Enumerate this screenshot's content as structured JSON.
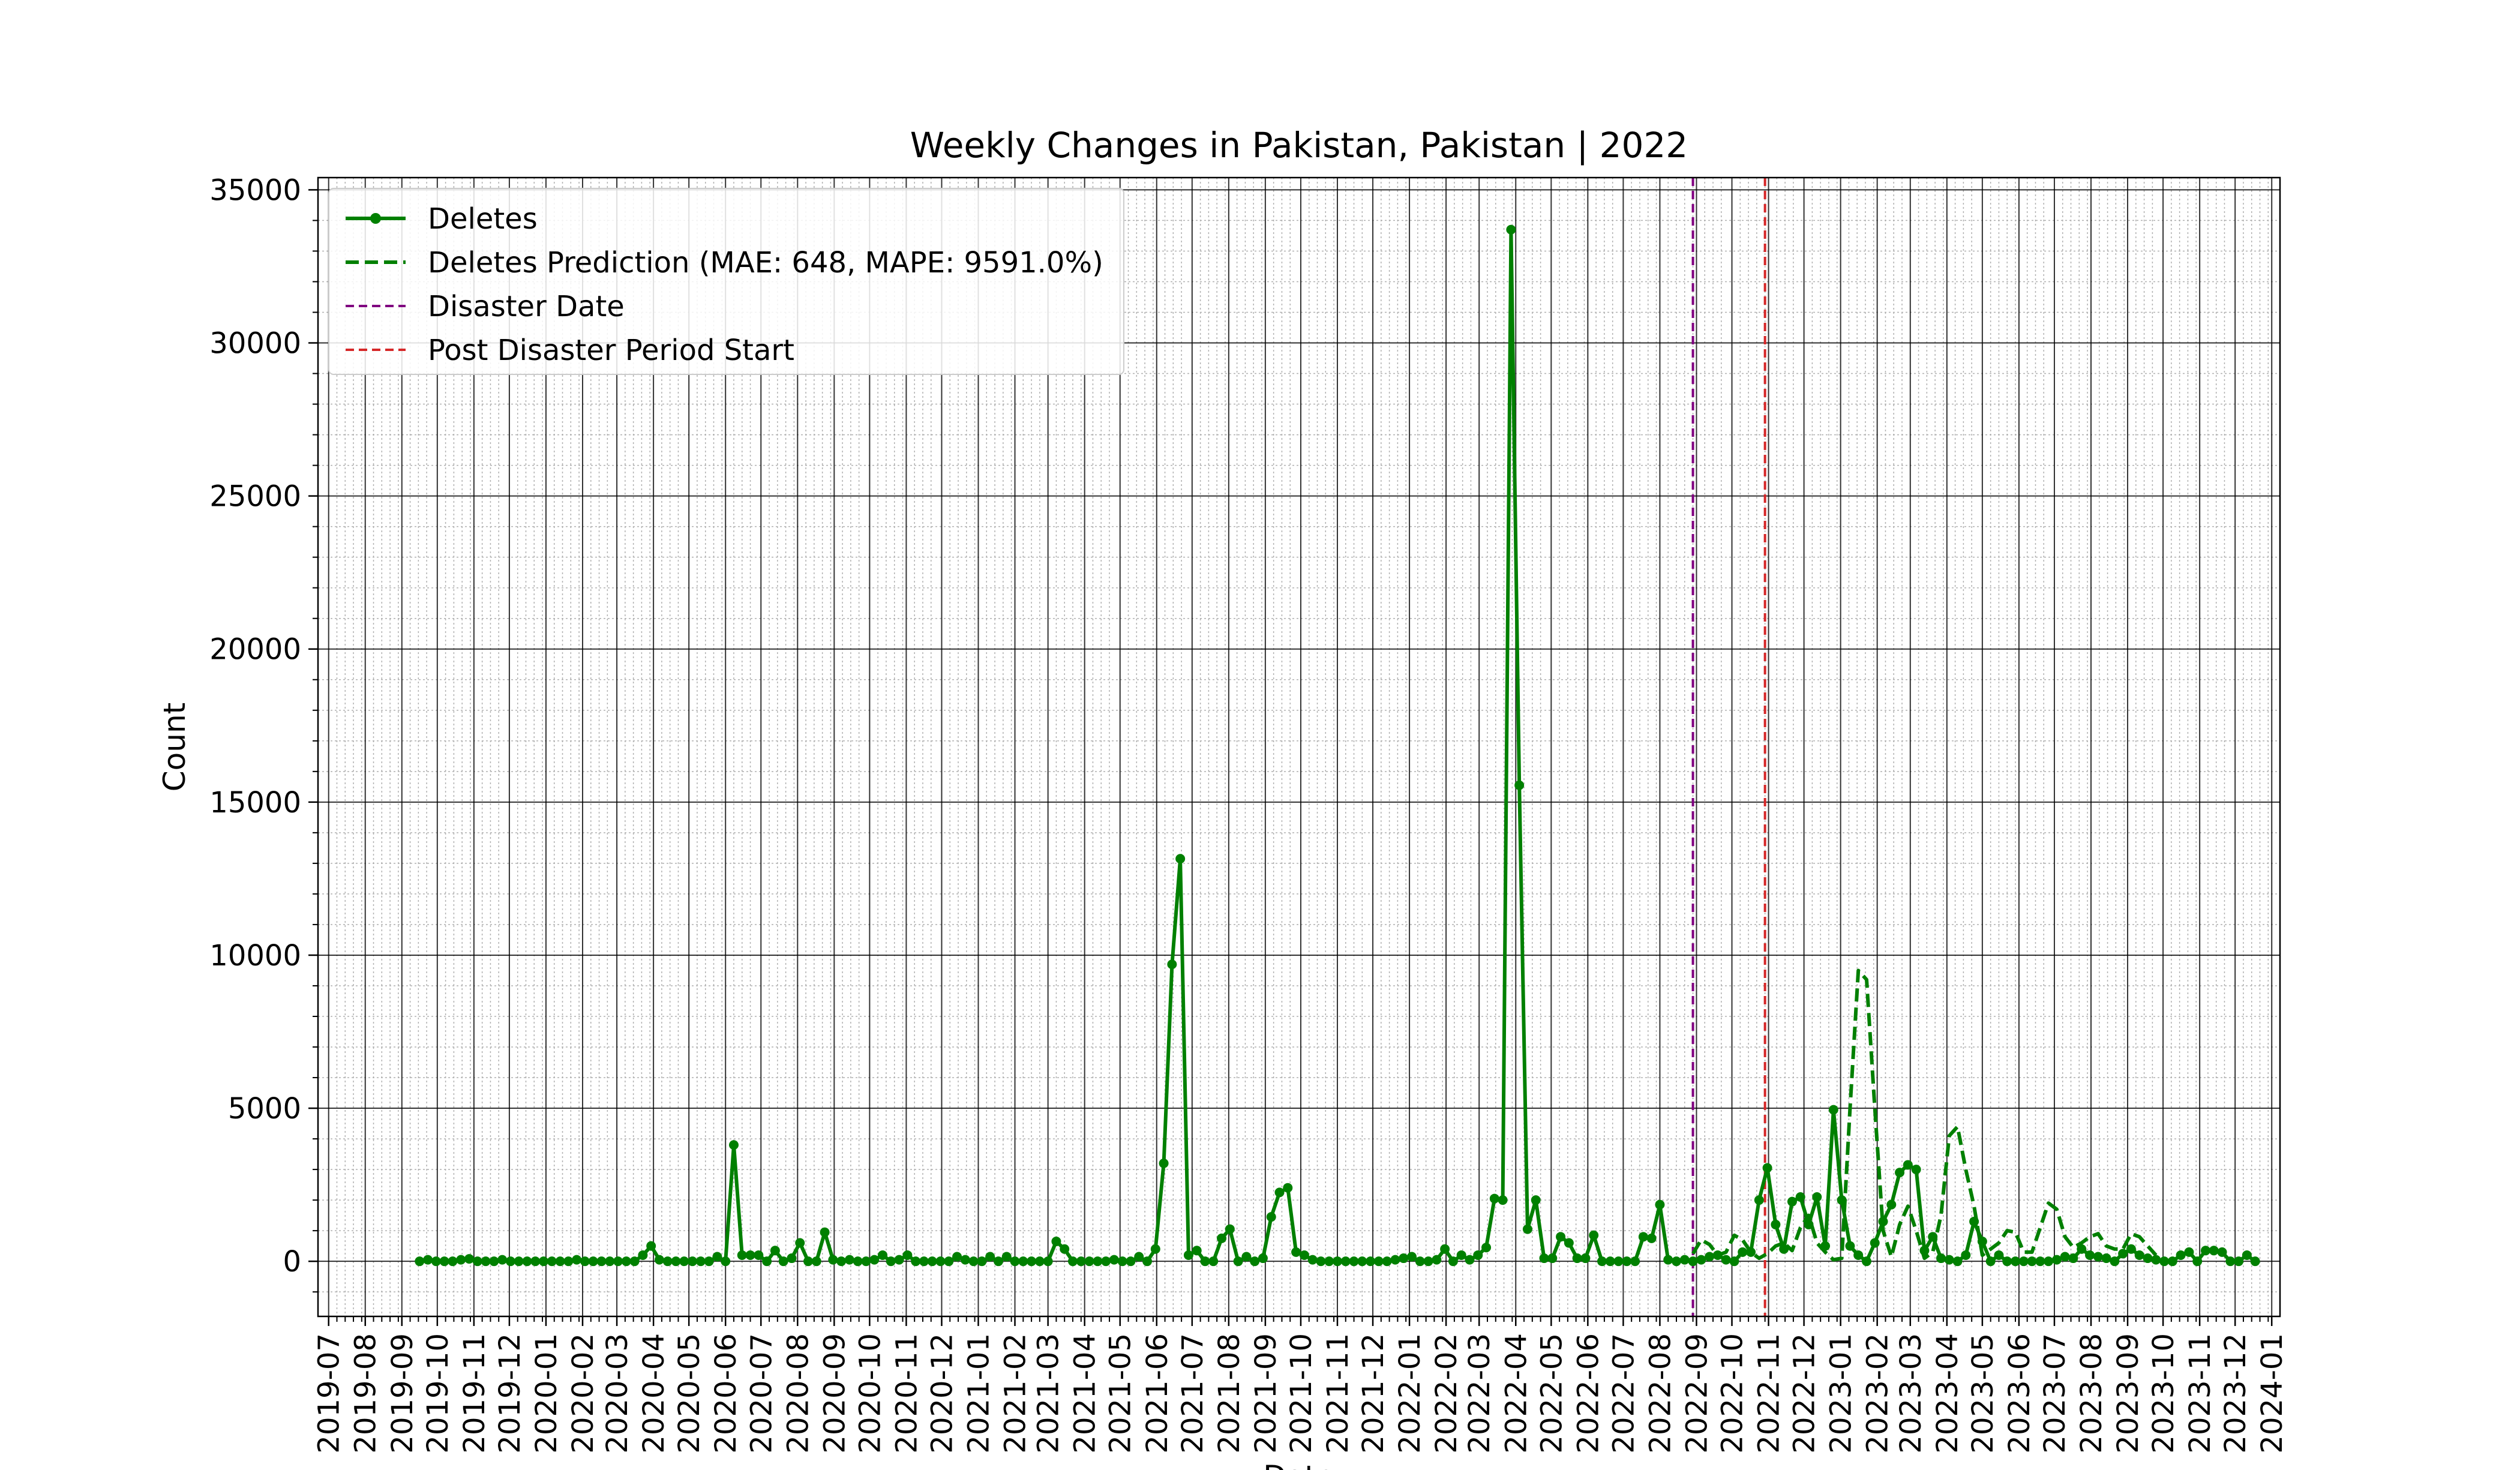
{
  "chart_data": {
    "type": "line",
    "title": "Weekly Changes in Pakistan, Pakistan | 2022",
    "xlabel": "Date",
    "ylabel": "Count",
    "ylim": [
      -1800,
      35400
    ],
    "xlim": [
      "2019-06-22",
      "2024-01-08"
    ],
    "y_ticks": [
      0,
      5000,
      10000,
      15000,
      20000,
      25000,
      30000,
      35000
    ],
    "y_tick_labels": [
      "0",
      "5000",
      "10000",
      "15000",
      "20000",
      "25000",
      "30000",
      "35000"
    ],
    "x_ticks": [
      "2019-07-01",
      "2019-08-01",
      "2019-09-01",
      "2019-10-01",
      "2019-11-01",
      "2019-12-01",
      "2020-01-01",
      "2020-02-01",
      "2020-03-01",
      "2020-04-01",
      "2020-05-01",
      "2020-06-01",
      "2020-07-01",
      "2020-08-01",
      "2020-09-01",
      "2020-10-01",
      "2020-11-01",
      "2020-12-01",
      "2021-01-01",
      "2021-02-01",
      "2021-03-01",
      "2021-04-01",
      "2021-05-01",
      "2021-06-01",
      "2021-07-01",
      "2021-08-01",
      "2021-09-01",
      "2021-10-01",
      "2021-11-01",
      "2021-12-01",
      "2022-01-01",
      "2022-02-01",
      "2022-03-01",
      "2022-04-01",
      "2022-05-01",
      "2022-06-01",
      "2022-07-01",
      "2022-08-01",
      "2022-09-01",
      "2022-10-01",
      "2022-11-01",
      "2022-12-01",
      "2023-01-01",
      "2023-02-01",
      "2023-03-01",
      "2023-04-01",
      "2023-05-01",
      "2023-06-01",
      "2023-07-01",
      "2023-08-01",
      "2023-09-01",
      "2023-10-01",
      "2023-11-01",
      "2023-12-01",
      "2024-01-01"
    ],
    "x_tick_labels": [
      "2019-07",
      "2019-08",
      "2019-09",
      "2019-10",
      "2019-11",
      "2019-12",
      "2020-01",
      "2020-02",
      "2020-03",
      "2020-04",
      "2020-05",
      "2020-06",
      "2020-07",
      "2020-08",
      "2020-09",
      "2020-10",
      "2020-11",
      "2020-12",
      "2021-01",
      "2021-02",
      "2021-03",
      "2021-04",
      "2021-05",
      "2021-06",
      "2021-07",
      "2021-08",
      "2021-09",
      "2021-10",
      "2021-11",
      "2021-12",
      "2022-01",
      "2022-02",
      "2022-03",
      "2022-04",
      "2022-05",
      "2022-06",
      "2022-07",
      "2022-08",
      "2022-09",
      "2022-10",
      "2022-11",
      "2022-12",
      "2023-01",
      "2023-02",
      "2023-03",
      "2023-04",
      "2023-05",
      "2023-06",
      "2023-07",
      "2023-08",
      "2023-09",
      "2023-10",
      "2023-11",
      "2023-12",
      "2024-01"
    ],
    "grid": true,
    "legend_position": "top-left",
    "legend": [
      "Deletes",
      "Deletes Prediction (MAE: 648, MAPE: 9591.0%)",
      "Disaster Date",
      "Post Disaster Period Start"
    ],
    "series": [
      {
        "name": "Deletes",
        "color": "#008000",
        "style": "solid-with-markers",
        "start_date": "2019-09-16",
        "interval_days": 7,
        "values": [
          0,
          50,
          0,
          0,
          0,
          50,
          80,
          0,
          0,
          0,
          50,
          0,
          0,
          0,
          0,
          0,
          0,
          0,
          0,
          50,
          0,
          0,
          0,
          0,
          0,
          0,
          0,
          200,
          500,
          50,
          0,
          0,
          0,
          0,
          0,
          0,
          150,
          0,
          3800,
          200,
          200,
          200,
          0,
          350,
          0,
          100,
          600,
          0,
          0,
          950,
          50,
          0,
          50,
          0,
          0,
          50,
          200,
          0,
          50,
          200,
          0,
          0,
          0,
          0,
          0,
          150,
          50,
          0,
          0,
          150,
          0,
          150,
          0,
          0,
          0,
          0,
          0,
          650,
          400,
          0,
          0,
          0,
          0,
          0,
          50,
          0,
          0,
          150,
          0,
          400,
          3200,
          9700,
          13150,
          200,
          350,
          0,
          0,
          750,
          1050,
          0,
          150,
          0,
          100,
          1450,
          2250,
          2400,
          300,
          200,
          50,
          0,
          0,
          0,
          0,
          0,
          0,
          0,
          0,
          0,
          50,
          100,
          150,
          0,
          0,
          50,
          400,
          0,
          200,
          50,
          200,
          450,
          2050,
          2000,
          33700,
          15550,
          1050,
          2000,
          100,
          100,
          800,
          600,
          100,
          100,
          850,
          0,
          0,
          0,
          0,
          0,
          800,
          750,
          1850,
          50,
          0,
          50,
          0,
          50,
          150,
          200,
          50,
          0,
          300,
          300,
          2000,
          3050,
          1200,
          400,
          1950,
          2100,
          1200,
          2100,
          500,
          4950,
          2000,
          500,
          200,
          0,
          600,
          1300,
          1850,
          2900,
          3150,
          3000,
          350,
          800,
          100,
          50,
          0,
          200,
          1300,
          650,
          0,
          200,
          0,
          0,
          0,
          0,
          0,
          0,
          50,
          150,
          100,
          400,
          200,
          150,
          100,
          0,
          250,
          400,
          200,
          100,
          50,
          0,
          0,
          200,
          300,
          0,
          350,
          350,
          300,
          0,
          0,
          200,
          0
        ]
      },
      {
        "name": "Deletes Prediction (MAE: 648, MAPE: 9591.0%)",
        "color": "#008000",
        "style": "dashed",
        "start_date": "2022-08-29",
        "interval_days": 7,
        "values": [
          250,
          700,
          550,
          200,
          300,
          850,
          700,
          300,
          100,
          250,
          500,
          600,
          350,
          1100,
          1500,
          600,
          300,
          50,
          100,
          5000,
          9500,
          9200,
          5000,
          1000,
          150,
          1200,
          1800,
          1000,
          100,
          300,
          1500,
          4100,
          4400,
          3000,
          1800,
          200,
          400,
          600,
          1000,
          950,
          300,
          300,
          1100,
          1900,
          1700,
          800,
          450,
          600,
          800,
          900,
          500,
          400,
          400,
          900,
          800,
          500,
          200
        ]
      }
    ],
    "vertical_lines": [
      {
        "name": "Disaster Date",
        "date": "2022-08-29",
        "color": "#800080"
      },
      {
        "name": "Post Disaster Period Start",
        "date": "2022-10-29",
        "color": "#d62728"
      }
    ]
  }
}
